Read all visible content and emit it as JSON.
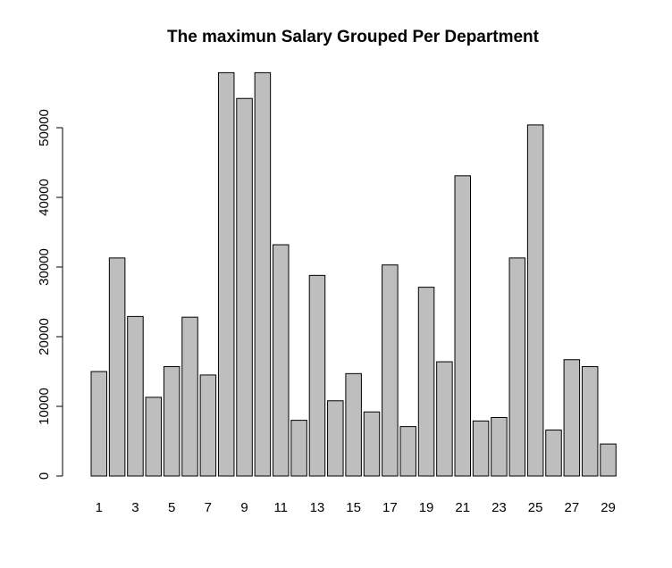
{
  "chart_data": {
    "type": "bar",
    "title": "The maximun Salary Grouped Per Department",
    "xlabel": "",
    "ylabel": "",
    "categories": [
      "1",
      "2",
      "3",
      "4",
      "5",
      "6",
      "7",
      "8",
      "9",
      "10",
      "11",
      "12",
      "13",
      "14",
      "15",
      "16",
      "17",
      "18",
      "19",
      "20",
      "21",
      "22",
      "23",
      "24",
      "25",
      "26",
      "27",
      "28",
      "29"
    ],
    "x_tick_labels": [
      "1",
      "3",
      "5",
      "7",
      "9",
      "11",
      "13",
      "15",
      "17",
      "19",
      "21",
      "23",
      "25",
      "27",
      "29"
    ],
    "values": [
      15000,
      31300,
      22900,
      11300,
      15700,
      22800,
      14500,
      57900,
      54200,
      57900,
      33200,
      8000,
      28800,
      10800,
      14700,
      9200,
      30300,
      7100,
      27100,
      16400,
      43100,
      7900,
      8400,
      31300,
      50400,
      6600,
      16700,
      15700,
      4600
    ],
    "y_ticks": [
      0,
      10000,
      20000,
      30000,
      40000,
      50000
    ],
    "ylim": [
      0,
      57900
    ],
    "bar_color": "#bebebe",
    "grid": false
  }
}
